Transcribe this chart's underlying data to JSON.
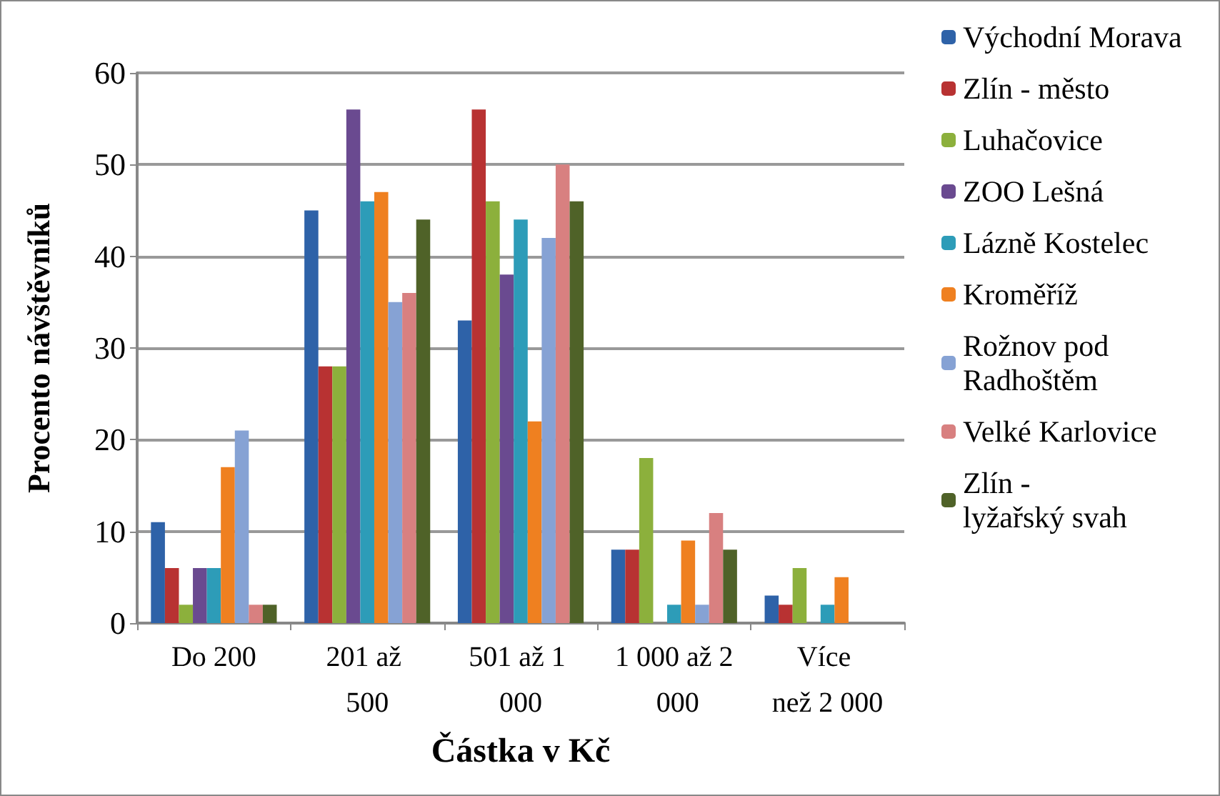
{
  "chart_data": {
    "type": "bar",
    "xlabel": "Částka v Kč",
    "ylabel": "Procento návštěvníků",
    "categories": [
      "Do 200",
      "201 až 500",
      "501 až 1 000",
      "1 000 až 2 000",
      "Více než 2 000"
    ],
    "series": [
      {
        "name": "Východní Morava",
        "color": "#2e62a8",
        "values": [
          11,
          45,
          33,
          8,
          3
        ]
      },
      {
        "name": "Zlín - město",
        "color": "#b83232",
        "values": [
          6,
          28,
          56,
          8,
          2
        ]
      },
      {
        "name": "Luhačovice",
        "color": "#8cb03c",
        "values": [
          2,
          28,
          46,
          18,
          6
        ]
      },
      {
        "name": "ZOO Lešná",
        "color": "#6a4a90",
        "values": [
          6,
          56,
          38,
          0,
          0
        ]
      },
      {
        "name": "Lázně Kostelec",
        "color": "#2d9cb8",
        "values": [
          6,
          46,
          44,
          2,
          2
        ]
      },
      {
        "name": "Kroměříž",
        "color": "#ef8020",
        "values": [
          17,
          47,
          22,
          9,
          5
        ]
      },
      {
        "name": "Rožnov pod Radhoštěm",
        "color": "#86a2d4",
        "values": [
          21,
          35,
          42,
          2,
          0
        ]
      },
      {
        "name": "Velké Karlovice",
        "color": "#d88080",
        "values": [
          2,
          36,
          50,
          12,
          0
        ]
      },
      {
        "name": "Zlín - lyžařský svah",
        "color": "#4f6228",
        "values": [
          2,
          44,
          46,
          8,
          0
        ]
      }
    ],
    "ylim": [
      0,
      60
    ],
    "yticks": [
      0,
      10,
      20,
      30,
      40,
      50,
      60
    ],
    "grid": "y",
    "legend": "right"
  }
}
